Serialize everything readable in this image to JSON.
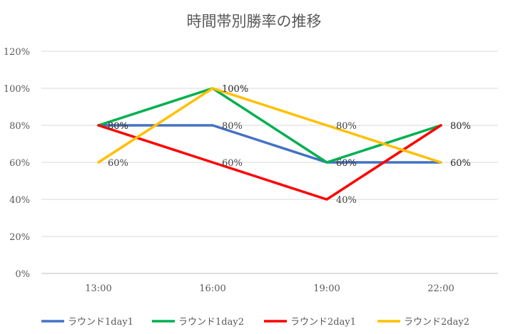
{
  "chart_data": {
    "type": "line",
    "title": "時間帯別勝率の推移",
    "categories": [
      "13:00",
      "16:00",
      "19:00",
      "22:00"
    ],
    "y_ticks": [
      "0%",
      "20%",
      "40%",
      "60%",
      "80%",
      "100%",
      "120%"
    ],
    "ylim": [
      0,
      120
    ],
    "grid": true,
    "legend_position": "bottom",
    "series": [
      {
        "name": "ラウンド1day1",
        "color": "#4472C4",
        "values": [
          80,
          80,
          60,
          60
        ],
        "labels": [
          "80%",
          "80%",
          "60%",
          "60%"
        ]
      },
      {
        "name": "ラウンド1day2",
        "color": "#00B050",
        "values": [
          80,
          100,
          60,
          80
        ],
        "labels": [
          "80%",
          "100%",
          "60%",
          "80%"
        ]
      },
      {
        "name": "ラウンド2day1",
        "color": "#FF0000",
        "values": [
          80,
          60,
          40,
          80
        ],
        "labels": [
          "80%",
          "60%",
          "40%",
          "80%"
        ]
      },
      {
        "name": "ラウンド2day2",
        "color": "#FFC000",
        "values": [
          60,
          100,
          80,
          60
        ],
        "labels": [
          "60%",
          "100%",
          "80%",
          "60%"
        ]
      }
    ]
  }
}
